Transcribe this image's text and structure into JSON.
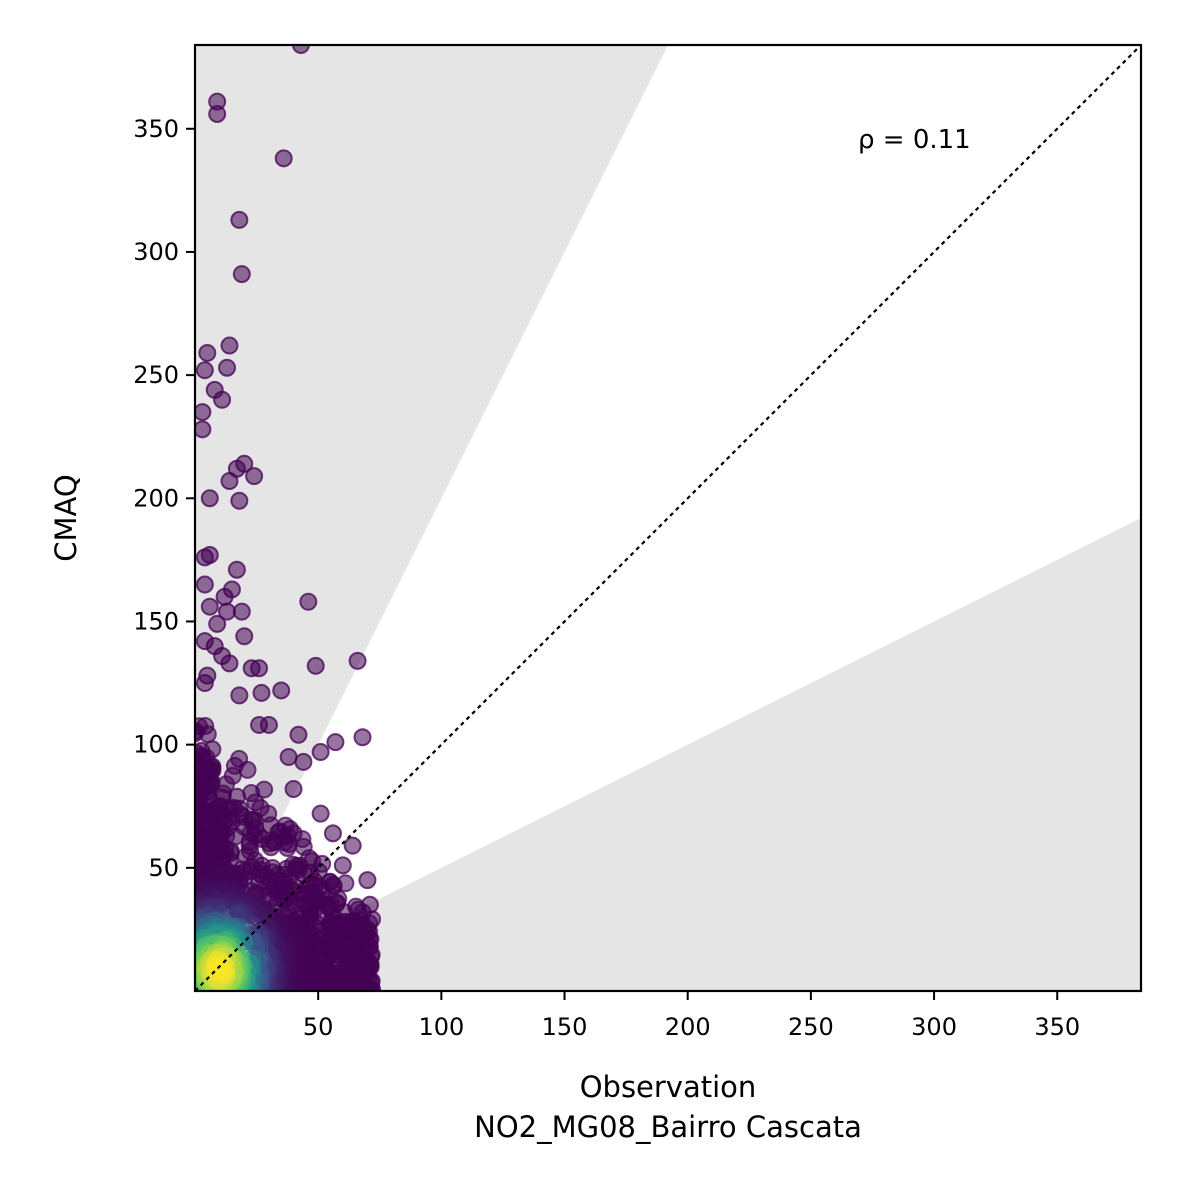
{
  "chart_data": {
    "type": "scatter",
    "title": "",
    "xlabel": "Observation",
    "xlabel_sub": "NO2_MG08_Bairro Cascata",
    "ylabel": "CMAQ",
    "annotation": "ρ = 0.11",
    "xlim": [
      0,
      384
    ],
    "ylim": [
      0,
      384
    ],
    "xticks": [
      50,
      100,
      150,
      200,
      250,
      300,
      350
    ],
    "yticks": [
      50,
      100,
      150,
      200,
      250,
      300,
      350
    ],
    "grid": false,
    "reference_line": "1:1",
    "shaded_band_slopes": [
      0.5,
      2.0
    ],
    "colormap": "viridis",
    "colors": {
      "band": "#e5e5e5",
      "point_low_density": "#440154",
      "point_high_density": "#fde725"
    },
    "outliers": [
      {
        "x": 43,
        "y": 384
      },
      {
        "x": 9,
        "y": 361
      },
      {
        "x": 9,
        "y": 356
      },
      {
        "x": 36,
        "y": 338
      },
      {
        "x": 18,
        "y": 313
      },
      {
        "x": 19,
        "y": 291
      },
      {
        "x": 14,
        "y": 262
      },
      {
        "x": 5,
        "y": 259
      },
      {
        "x": 13,
        "y": 253
      },
      {
        "x": 4,
        "y": 252
      },
      {
        "x": 8,
        "y": 244
      },
      {
        "x": 11,
        "y": 240
      },
      {
        "x": 3,
        "y": 235
      },
      {
        "x": 3,
        "y": 228
      },
      {
        "x": 20,
        "y": 214
      },
      {
        "x": 17,
        "y": 212
      },
      {
        "x": 24,
        "y": 209
      },
      {
        "x": 14,
        "y": 207
      },
      {
        "x": 6,
        "y": 200
      },
      {
        "x": 18,
        "y": 199
      },
      {
        "x": 6,
        "y": 177
      },
      {
        "x": 4,
        "y": 176
      },
      {
        "x": 17,
        "y": 171
      },
      {
        "x": 4,
        "y": 165
      },
      {
        "x": 15,
        "y": 163
      },
      {
        "x": 46,
        "y": 158
      },
      {
        "x": 12,
        "y": 160
      },
      {
        "x": 6,
        "y": 156
      },
      {
        "x": 19,
        "y": 154
      },
      {
        "x": 13,
        "y": 154
      },
      {
        "x": 9,
        "y": 149
      },
      {
        "x": 20,
        "y": 144
      },
      {
        "x": 4,
        "y": 142
      },
      {
        "x": 8,
        "y": 140
      },
      {
        "x": 11,
        "y": 136
      },
      {
        "x": 14,
        "y": 133
      },
      {
        "x": 66,
        "y": 134
      },
      {
        "x": 49,
        "y": 132
      },
      {
        "x": 26,
        "y": 131
      },
      {
        "x": 23,
        "y": 131
      },
      {
        "x": 5,
        "y": 128
      },
      {
        "x": 4,
        "y": 125
      },
      {
        "x": 35,
        "y": 122
      },
      {
        "x": 27,
        "y": 121
      },
      {
        "x": 18,
        "y": 120
      },
      {
        "x": 30,
        "y": 108
      },
      {
        "x": 26,
        "y": 108
      },
      {
        "x": 68,
        "y": 103
      },
      {
        "x": 57,
        "y": 101
      },
      {
        "x": 51,
        "y": 97
      },
      {
        "x": 42,
        "y": 104
      },
      {
        "x": 38,
        "y": 95
      },
      {
        "x": 44,
        "y": 93
      },
      {
        "x": 40,
        "y": 82
      },
      {
        "x": 51,
        "y": 72
      },
      {
        "x": 56,
        "y": 64
      },
      {
        "x": 64,
        "y": 59
      },
      {
        "x": 60,
        "y": 51
      },
      {
        "x": 70,
        "y": 45
      },
      {
        "x": 71,
        "y": 35
      },
      {
        "x": 70,
        "y": 25
      },
      {
        "x": 71,
        "y": 18
      },
      {
        "x": 70,
        "y": 10
      },
      {
        "x": 65,
        "y": 14
      }
    ],
    "dense_region": {
      "x_range": [
        0,
        72
      ],
      "y_range": [
        0,
        118
      ],
      "peak": {
        "x": 10,
        "y": 9
      }
    }
  }
}
